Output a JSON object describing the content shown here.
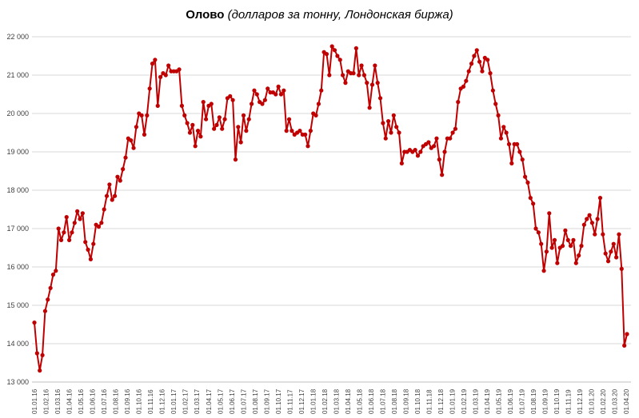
{
  "chart_data": {
    "type": "line",
    "title": "Олово",
    "subtitle": "(долларов за тонну, Лондонская биржа)",
    "xlabel": "",
    "ylabel": "",
    "ylim": [
      13000,
      22000
    ],
    "y_ticks": [
      13000,
      14000,
      15000,
      16000,
      17000,
      18000,
      19000,
      20000,
      21000,
      22000
    ],
    "y_tick_labels": [
      "13 000",
      "14 000",
      "15 000",
      "16 000",
      "17 000",
      "18 000",
      "19 000",
      "20 000",
      "21 000",
      "22 000"
    ],
    "x_tick_labels": [
      "01.01.16",
      "01.02.16",
      "01.03.16",
      "01.04.16",
      "01.05.16",
      "01.06.16",
      "01.07.16",
      "01.08.16",
      "01.09.16",
      "01.10.16",
      "01.11.16",
      "01.12.16",
      "01.01.17",
      "01.02.17",
      "01.03.17",
      "01.04.17",
      "01.05.17",
      "01.06.17",
      "01.07.17",
      "01.08.17",
      "01.09.17",
      "01.10.17",
      "01.11.17",
      "01.12.17",
      "01.01.18",
      "01.02.18",
      "01.03.18",
      "01.04.18",
      "01.05.18",
      "01.06.18",
      "01.07.18",
      "01.08.18",
      "01.09.18",
      "01.10.18",
      "01.11.18",
      "01.12.18",
      "01.01.19",
      "01.02.19",
      "01.03.19",
      "01.04.19",
      "01.05.19",
      "01.06.19",
      "01.07.19",
      "01.08.19",
      "01.09.19",
      "01.10.19",
      "01.11.19",
      "01.12.19",
      "01.01.20",
      "01.02.20",
      "01.03.20",
      "01.04.20"
    ],
    "grid": true,
    "series": [
      {
        "name": "",
        "color": "#C00000",
        "values": [
          14550,
          13750,
          13300,
          13700,
          14850,
          15150,
          15450,
          15800,
          15900,
          17000,
          16700,
          16900,
          17300,
          16700,
          16900,
          17150,
          17450,
          17250,
          17400,
          16650,
          16450,
          16200,
          16600,
          17100,
          17050,
          17150,
          17500,
          17850,
          18150,
          17750,
          17850,
          18350,
          18250,
          18550,
          18850,
          19350,
          19300,
          19100,
          19650,
          20000,
          19950,
          19450,
          19950,
          20650,
          21300,
          21400,
          20200,
          20950,
          21050,
          21000,
          21250,
          21100,
          21100,
          21100,
          21150,
          20200,
          19950,
          19750,
          19500,
          19700,
          19150,
          19550,
          19400,
          20300,
          19850,
          20200,
          20250,
          19600,
          19700,
          19900,
          19600,
          19850,
          20400,
          20450,
          20350,
          18800,
          19650,
          19250,
          19950,
          19550,
          19850,
          20250,
          20600,
          20500,
          20300,
          20250,
          20350,
          20650,
          20550,
          20550,
          20500,
          20700,
          20500,
          20600,
          19550,
          19850,
          19550,
          19450,
          19500,
          19550,
          19450,
          19450,
          19150,
          19550,
          20000,
          19950,
          20250,
          20600,
          21600,
          21550,
          21000,
          21750,
          21650,
          21500,
          21400,
          21000,
          20800,
          21100,
          21050,
          21050,
          21700,
          21000,
          21250,
          21000,
          20800,
          20150,
          20750,
          21250,
          20800,
          20400,
          19750,
          19350,
          19800,
          19500,
          19950,
          19650,
          19500,
          18700,
          19000,
          19000,
          19050,
          19000,
          19050,
          18900,
          19000,
          19150,
          19200,
          19250,
          19100,
          19150,
          19350,
          18800,
          18400,
          19000,
          19350,
          19350,
          19500,
          19600,
          20300,
          20650,
          20700,
          20850,
          21100,
          21300,
          21500,
          21650,
          21350,
          21100,
          21450,
          21400,
          21050,
          20600,
          20250,
          19950,
          19350,
          19650,
          19500,
          19200,
          18700,
          19200,
          19200,
          19000,
          18800,
          18350,
          18200,
          17800,
          17650,
          17000,
          16900,
          16600,
          15900,
          16400,
          17400,
          16500,
          16700,
          16100,
          16500,
          16550,
          16950,
          16700,
          16550,
          16700,
          16100,
          16300,
          16550,
          17100,
          17250,
          17350,
          17150,
          16850,
          17250,
          17800,
          16850,
          16350,
          16150,
          16400,
          16600,
          16250,
          16850,
          15950,
          13950,
          14250
        ]
      }
    ]
  }
}
